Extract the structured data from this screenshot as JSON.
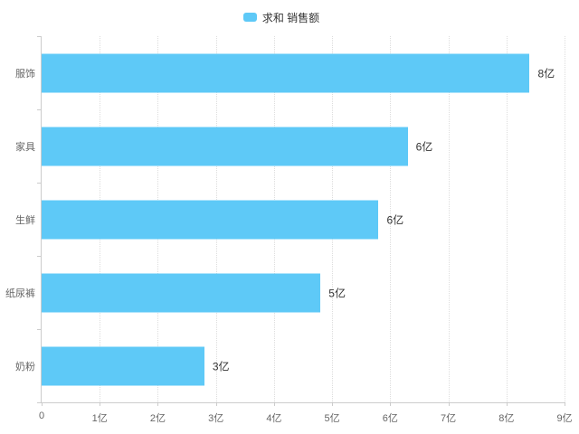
{
  "legend": {
    "label": "求和 销售额"
  },
  "colors": {
    "bar": "#5ec9f7",
    "axis": "#cccccc",
    "grid": "#dddddd",
    "category_label": "#666666",
    "value_label": "#333333",
    "legend_text": "#333333"
  },
  "chart_data": {
    "type": "bar",
    "orientation": "horizontal",
    "title": "",
    "series_name": "求和 销售额",
    "categories": [
      "服饰",
      "家具",
      "生鲜",
      "纸尿裤",
      "奶粉"
    ],
    "values": [
      8.4,
      6.3,
      5.8,
      4.8,
      2.8
    ],
    "value_labels": [
      "8亿",
      "6亿",
      "6亿",
      "5亿",
      "3亿"
    ],
    "x_ticks": [
      "0",
      "1亿",
      "2亿",
      "3亿",
      "4亿",
      "5亿",
      "6亿",
      "7亿",
      "8亿",
      "9亿"
    ],
    "x_tick_values": [
      0,
      1,
      2,
      3,
      4,
      5,
      6,
      7,
      8,
      9
    ],
    "xlim": [
      0,
      9
    ],
    "xlabel": "",
    "ylabel": "",
    "grid": "vertical-dotted",
    "legend_position": "top-center",
    "bar_color": "#5ec9f7"
  }
}
